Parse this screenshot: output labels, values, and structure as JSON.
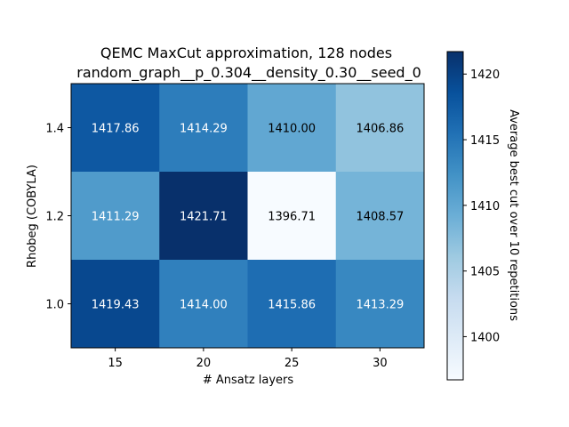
{
  "chart_data": {
    "type": "heatmap",
    "title_line1": "QEMC MaxCut approximation, 128 nodes",
    "title_line2": "random_graph__p_0.304__density_0.30__seed_0",
    "xlabel": "# Ansatz layers",
    "ylabel": "Rhobeg (COBYLA)",
    "colorbar_label": "Average best cut over 10 repetitions",
    "x_categories": [
      "15",
      "20",
      "25",
      "30"
    ],
    "y_categories": [
      "1.4",
      "1.2",
      "1.0"
    ],
    "values": [
      [
        1417.86,
        1414.29,
        1410.0,
        1406.86
      ],
      [
        1411.29,
        1421.71,
        1396.71,
        1408.57
      ],
      [
        1419.43,
        1414.0,
        1415.86,
        1413.29
      ]
    ],
    "cell_labels": [
      [
        "1417.86",
        "1414.29",
        "1410.00",
        "1406.86"
      ],
      [
        "1411.29",
        "1421.71",
        "1396.71",
        "1408.57"
      ],
      [
        "1419.43",
        "1414.00",
        "1415.86",
        "1413.29"
      ]
    ],
    "colormap": "Blues",
    "colorbar_range": [
      1396.71,
      1421.71
    ],
    "colorbar_ticks": [
      1400,
      1405,
      1410,
      1415,
      1420
    ],
    "colorbar_tick_labels": [
      "1400",
      "1405",
      "1410",
      "1415",
      "1420"
    ],
    "grid": false
  }
}
